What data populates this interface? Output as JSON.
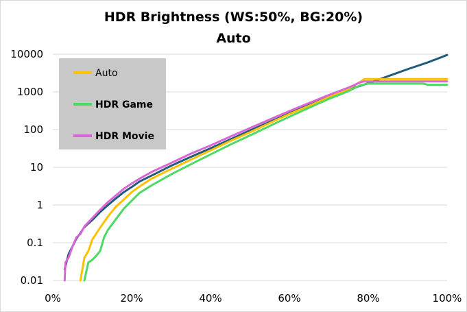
{
  "chart_data": {
    "type": "line",
    "title": "HDR Brightness (WS:50%, BG:20%)",
    "subtitle": "Auto",
    "x_axis": {
      "min": 0,
      "max": 100,
      "unit": "%",
      "ticks": [
        "0%",
        "20%",
        "40%",
        "60%",
        "80%",
        "100%"
      ]
    },
    "y_axis": {
      "scale": "log",
      "min": 0.01,
      "max": 10000,
      "ticks": [
        "0.01",
        "0.1",
        "1",
        "10",
        "100",
        "1000",
        "10000"
      ]
    },
    "grid": "horizontal",
    "legend": {
      "placement": "top-left",
      "background": "#c8c8c8"
    },
    "series": [
      {
        "color": "#1f5b7a",
        "points": [
          [
            3,
            0.02
          ],
          [
            4,
            0.05
          ],
          [
            5,
            0.08
          ],
          [
            6,
            0.13
          ],
          [
            7,
            0.18
          ],
          [
            8,
            0.26
          ],
          [
            10,
            0.4
          ],
          [
            12,
            0.65
          ],
          [
            14,
            1.0
          ],
          [
            16,
            1.5
          ],
          [
            18,
            2.2
          ],
          [
            20,
            3.0
          ],
          [
            22,
            4.2
          ],
          [
            25,
            6.0
          ],
          [
            30,
            11
          ],
          [
            35,
            19
          ],
          [
            40,
            32
          ],
          [
            45,
            55
          ],
          [
            50,
            95
          ],
          [
            55,
            160
          ],
          [
            60,
            270
          ],
          [
            65,
            450
          ],
          [
            70,
            750
          ],
          [
            75,
            1150
          ],
          [
            80,
            1700
          ],
          [
            85,
            2600
          ],
          [
            90,
            4000
          ],
          [
            95,
            6000
          ],
          [
            100,
            9500
          ]
        ]
      },
      {
        "name": "Auto",
        "color": "#ffc000",
        "points": [
          [
            7,
            0.01
          ],
          [
            8,
            0.04
          ],
          [
            9,
            0.06
          ],
          [
            10,
            0.12
          ],
          [
            12,
            0.25
          ],
          [
            14,
            0.5
          ],
          [
            16,
            0.9
          ],
          [
            18,
            1.4
          ],
          [
            20,
            2.2
          ],
          [
            22,
            3.1
          ],
          [
            25,
            5.0
          ],
          [
            30,
            9.0
          ],
          [
            35,
            16
          ],
          [
            40,
            28
          ],
          [
            45,
            50
          ],
          [
            50,
            85
          ],
          [
            55,
            150
          ],
          [
            60,
            260
          ],
          [
            65,
            430
          ],
          [
            70,
            720
          ],
          [
            75,
            1200
          ],
          [
            78,
            1850
          ],
          [
            79,
            2200
          ],
          [
            85,
            2200
          ],
          [
            90,
            2200
          ],
          [
            95,
            2200
          ],
          [
            100,
            2200
          ]
        ]
      },
      {
        "name": "HDR Game",
        "color": "#4cd964",
        "points": [
          [
            8,
            0.01
          ],
          [
            9,
            0.03
          ],
          [
            10,
            0.035
          ],
          [
            11,
            0.045
          ],
          [
            12,
            0.06
          ],
          [
            13,
            0.14
          ],
          [
            14,
            0.22
          ],
          [
            16,
            0.42
          ],
          [
            18,
            0.8
          ],
          [
            20,
            1.3
          ],
          [
            22,
            2.1
          ],
          [
            25,
            3.3
          ],
          [
            30,
            6.5
          ],
          [
            35,
            12
          ],
          [
            40,
            22
          ],
          [
            45,
            40
          ],
          [
            50,
            70
          ],
          [
            55,
            125
          ],
          [
            60,
            220
          ],
          [
            65,
            380
          ],
          [
            70,
            650
          ],
          [
            75,
            1050
          ],
          [
            78,
            1500
          ],
          [
            80,
            1650
          ],
          [
            85,
            1650
          ],
          [
            90,
            1650
          ],
          [
            94,
            1650
          ],
          [
            95,
            1550
          ],
          [
            100,
            1550
          ]
        ]
      },
      {
        "name": "HDR Movie",
        "color": "#d966d9",
        "points": [
          [
            3,
            0.01
          ],
          [
            3.2,
            0.03
          ],
          [
            4,
            0.04
          ],
          [
            5,
            0.08
          ],
          [
            6,
            0.14
          ],
          [
            7,
            0.17
          ],
          [
            8,
            0.27
          ],
          [
            10,
            0.45
          ],
          [
            12,
            0.75
          ],
          [
            14,
            1.2
          ],
          [
            16,
            1.8
          ],
          [
            18,
            2.7
          ],
          [
            20,
            3.7
          ],
          [
            22,
            5.0
          ],
          [
            25,
            7.5
          ],
          [
            30,
            13
          ],
          [
            35,
            23
          ],
          [
            40,
            38
          ],
          [
            45,
            65
          ],
          [
            50,
            110
          ],
          [
            55,
            185
          ],
          [
            60,
            310
          ],
          [
            65,
            510
          ],
          [
            70,
            830
          ],
          [
            75,
            1300
          ],
          [
            78,
            1800
          ],
          [
            79,
            1900
          ],
          [
            85,
            1900
          ],
          [
            90,
            1900
          ],
          [
            95,
            1900
          ],
          [
            100,
            1900
          ]
        ]
      }
    ]
  }
}
